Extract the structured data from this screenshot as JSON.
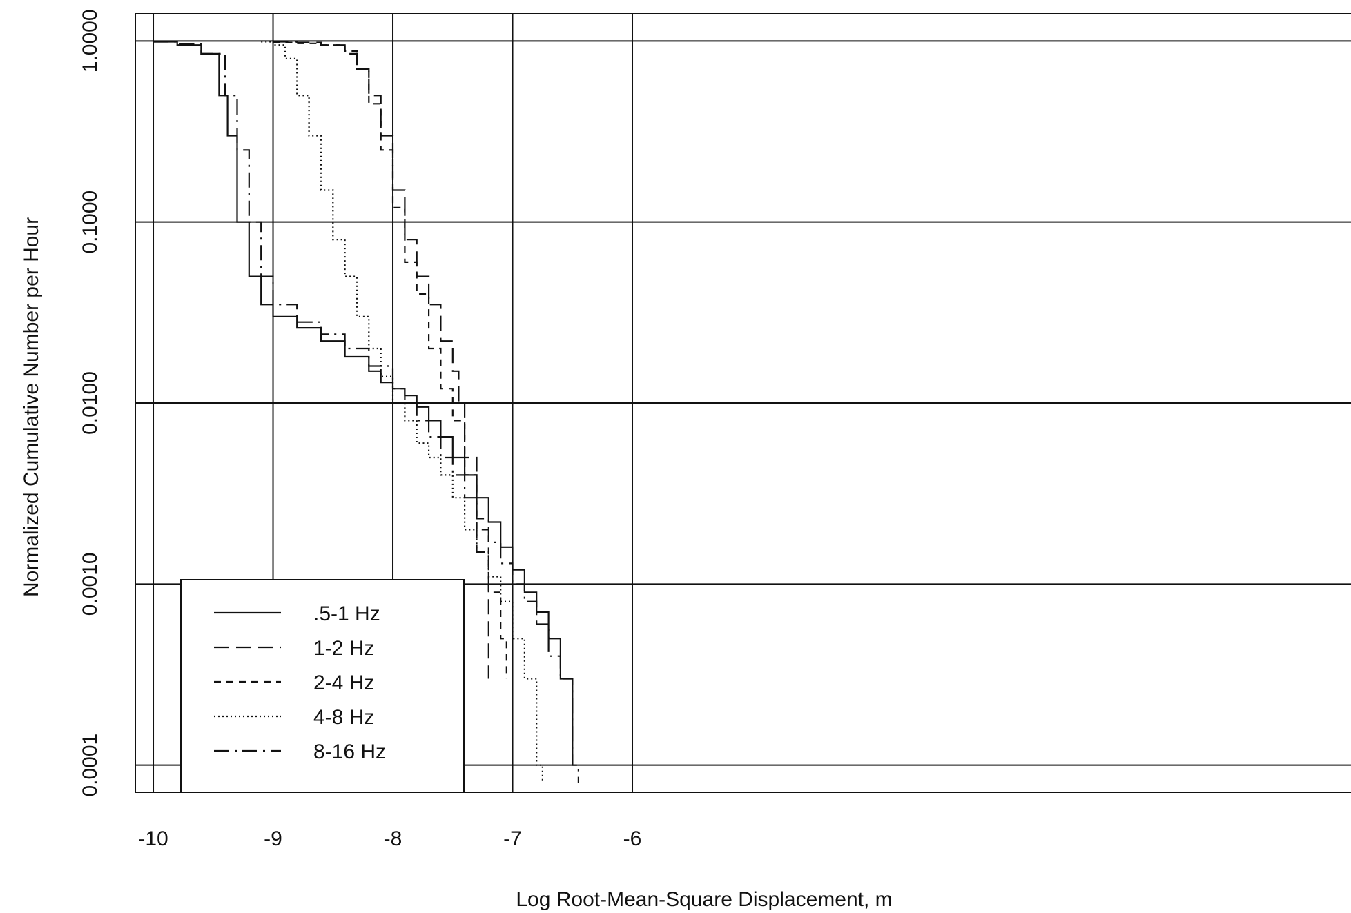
{
  "chart_data": {
    "type": "line",
    "title": "",
    "xlabel": "Log Root-Mean-Square Displacement, m",
    "ylabel": "Normalized Cumulative Number per Hour",
    "xlim": [
      -10.15,
      0.0
    ],
    "ylim_log10": [
      -4.15,
      0.15
    ],
    "y_scale": "log",
    "grid": true,
    "legend_position": "bottom-left",
    "x_ticks": [
      {
        "value": -10,
        "label": "-10"
      },
      {
        "value": -9,
        "label": "-9"
      },
      {
        "value": -8,
        "label": "-8"
      },
      {
        "value": -7,
        "label": "-7"
      },
      {
        "value": -6,
        "label": "-6"
      }
    ],
    "y_ticks": [
      {
        "value": 1.0,
        "label": "1.0000"
      },
      {
        "value": 0.1,
        "label": "0.1000"
      },
      {
        "value": 0.01,
        "label": "0.0100"
      },
      {
        "value": 0.001,
        "label": "0.0010"
      },
      {
        "value": 0.0001,
        "label": "0.0001"
      }
    ],
    "series": [
      {
        "name": ".5-1 Hz",
        "style": "solid",
        "x": [
          -10.0,
          -9.8,
          -9.6,
          -9.45,
          -9.38,
          -9.3,
          -9.2,
          -9.1,
          -9.0,
          -8.8,
          -8.6,
          -8.4,
          -8.2,
          -8.1,
          -8.0,
          -7.9,
          -7.8,
          -7.7,
          -7.6,
          -7.5,
          -7.4,
          -7.3,
          -7.2,
          -7.1,
          -7.0,
          -6.9,
          -6.8,
          -6.7,
          -6.6,
          -6.5
        ],
        "y": [
          0.99,
          0.95,
          0.85,
          0.5,
          0.3,
          0.1,
          0.05,
          0.035,
          0.03,
          0.026,
          0.022,
          0.018,
          0.015,
          0.013,
          0.012,
          0.011,
          0.0095,
          0.008,
          0.0065,
          0.005,
          0.004,
          0.003,
          0.0022,
          0.0016,
          0.0012,
          0.0009,
          0.0007,
          0.0005,
          0.0003,
          0.0001
        ]
      },
      {
        "name": "1-2 Hz",
        "style": "dash-long",
        "x": [
          -9.0,
          -8.8,
          -8.6,
          -8.4,
          -8.3,
          -8.2,
          -8.1,
          -8.0,
          -7.9,
          -7.8,
          -7.7,
          -7.6,
          -7.5,
          -7.45,
          -7.4,
          -7.3,
          -7.2
        ],
        "y": [
          0.99,
          0.98,
          0.95,
          0.85,
          0.7,
          0.5,
          0.3,
          0.15,
          0.08,
          0.05,
          0.035,
          0.022,
          0.015,
          0.01,
          0.005,
          0.0015,
          0.0003
        ]
      },
      {
        "name": "2-4 Hz",
        "style": "dash-short",
        "x": [
          -9.0,
          -8.8,
          -8.6,
          -8.4,
          -8.3,
          -8.2,
          -8.1,
          -8.0,
          -7.9,
          -7.8,
          -7.7,
          -7.6,
          -7.5,
          -7.4,
          -7.3,
          -7.2,
          -7.1,
          -7.05
        ],
        "y": [
          0.98,
          0.97,
          0.95,
          0.88,
          0.7,
          0.45,
          0.25,
          0.12,
          0.06,
          0.04,
          0.02,
          0.012,
          0.008,
          0.004,
          0.002,
          0.0009,
          0.0005,
          0.0003
        ]
      },
      {
        "name": "4-8 Hz",
        "style": "dotted",
        "x": [
          -9.1,
          -9.0,
          -8.9,
          -8.8,
          -8.7,
          -8.6,
          -8.5,
          -8.4,
          -8.3,
          -8.2,
          -8.1,
          -8.0,
          -7.9,
          -7.8,
          -7.7,
          -7.6,
          -7.5,
          -7.4,
          -7.3,
          -7.2,
          -7.1,
          -7.0,
          -6.9,
          -6.8,
          -6.75
        ],
        "y": [
          0.99,
          0.95,
          0.8,
          0.5,
          0.3,
          0.15,
          0.08,
          0.05,
          0.03,
          0.02,
          0.014,
          0.01,
          0.008,
          0.006,
          0.005,
          0.004,
          0.003,
          0.002,
          0.0015,
          0.0011,
          0.0008,
          0.0005,
          0.0003,
          0.0001,
          8e-05
        ]
      },
      {
        "name": "8-16 Hz",
        "style": "dash-dot",
        "x": [
          -10.0,
          -9.8,
          -9.6,
          -9.4,
          -9.3,
          -9.2,
          -9.1,
          -9.0,
          -8.8,
          -8.6,
          -8.4,
          -8.2,
          -8.0,
          -7.9,
          -7.8,
          -7.7,
          -7.6,
          -7.5,
          -7.4,
          -7.3,
          -7.2,
          -7.1,
          -7.0,
          -6.9,
          -6.8,
          -6.7,
          -6.6,
          -6.5,
          -6.45
        ],
        "y": [
          0.99,
          0.96,
          0.85,
          0.5,
          0.25,
          0.1,
          0.05,
          0.035,
          0.028,
          0.024,
          0.02,
          0.016,
          0.012,
          0.01,
          0.008,
          0.0065,
          0.005,
          0.004,
          0.003,
          0.0023,
          0.0017,
          0.0013,
          0.001,
          0.0008,
          0.0006,
          0.0004,
          0.0003,
          0.0001,
          8e-05
        ]
      }
    ]
  }
}
